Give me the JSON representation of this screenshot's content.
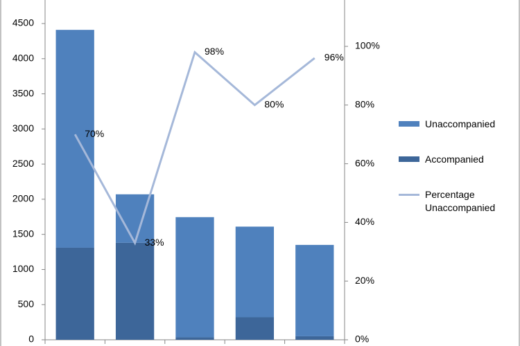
{
  "chart_data": {
    "type": "bar",
    "categories": [
      null,
      null,
      null,
      null,
      null
    ],
    "series": [
      {
        "name": "Unaccompanied",
        "color": "#4f81bd",
        "values": [
          3100,
          690,
          1710,
          1290,
          1300
        ]
      },
      {
        "name": "Accompanied",
        "color": "#3d6699",
        "values": [
          1310,
          1380,
          35,
          320,
          50
        ]
      },
      {
        "name": "Percentage Unaccompanied",
        "type": "line",
        "axis": "y2",
        "color": "#a5b8d9",
        "values": [
          70,
          33,
          98,
          80,
          96
        ],
        "value_labels": [
          "70%",
          "33%",
          "98%",
          "80%",
          "96%"
        ]
      }
    ],
    "ylim": [
      0,
      4835
    ],
    "yticks": [
      0,
      500,
      1000,
      1500,
      2000,
      2500,
      3000,
      3500,
      4000,
      4500
    ],
    "y2lim": [
      0,
      115.8
    ],
    "y2ticks": [
      {
        "value": 0,
        "label": "0%"
      },
      {
        "value": 20,
        "label": "20%"
      },
      {
        "value": 40,
        "label": "40%"
      },
      {
        "value": 60,
        "label": "60%"
      },
      {
        "value": 80,
        "label": "80%"
      },
      {
        "value": 100,
        "label": "100%"
      }
    ],
    "legend": "right"
  }
}
